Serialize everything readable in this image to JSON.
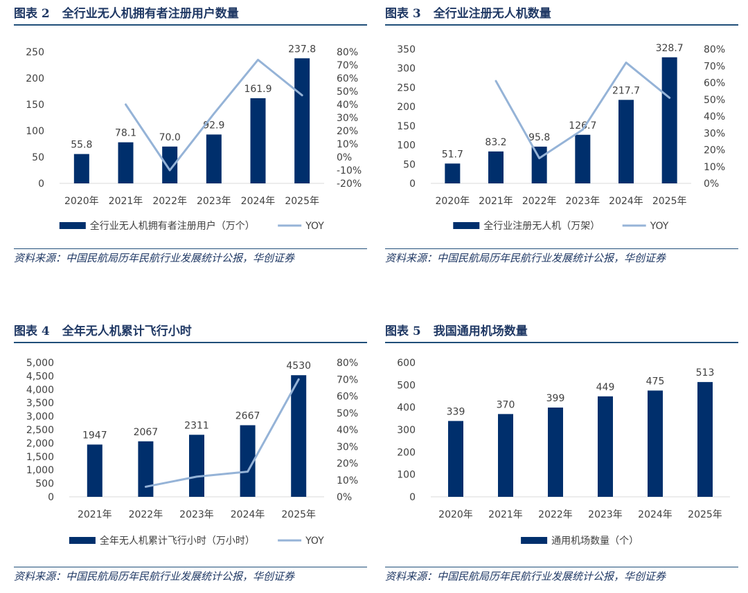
{
  "panels": [
    {
      "fig_num": "图表 2",
      "title": "全行业无人机拥有者注册用户数量",
      "source": "资料来源：中国民航局历年民航行业发展统计公报，华创证券"
    },
    {
      "fig_num": "图表 3",
      "title": "全行业注册无人机数量",
      "source": "资料来源：中国民航局历年民航行业发展统计公报，华创证券"
    },
    {
      "fig_num": "图表 4",
      "title": "全年无人机累计飞行小时",
      "source": "资料来源：中国民航局历年民航行业发展统计公报，华创证券"
    },
    {
      "fig_num": "图表 5",
      "title": "我国通用机场数量",
      "source": "资料来源：中国民航局历年民航行业发展统计公报，华创证券"
    }
  ],
  "colors": {
    "bar": "#002f6c",
    "line": "#95b3d7",
    "title": "#1f3864",
    "rule": "#1f4e79"
  },
  "chart_data": [
    {
      "type": "bar",
      "categories": [
        "2020年",
        "2021年",
        "2022年",
        "2023年",
        "2024年",
        "2025年"
      ],
      "series": [
        {
          "name": "全行业无人机拥有者注册用户（万个）",
          "type": "bar",
          "axis": "left",
          "values": [
            55.8,
            78.1,
            70.0,
            92.9,
            161.9,
            237.8
          ],
          "labels": [
            "55.8",
            "78.1",
            "70.0",
            "92.9",
            "161.9",
            "237.8"
          ]
        },
        {
          "name": "YOY",
          "type": "line",
          "axis": "right",
          "values": [
            null,
            40,
            -10,
            33,
            74,
            47
          ]
        }
      ],
      "ylim": [
        0,
        250
      ],
      "yticks": [
        0,
        50,
        100,
        150,
        200,
        250
      ],
      "y2lim": [
        -20,
        80
      ],
      "y2ticks": [
        -20,
        -10,
        0,
        10,
        20,
        30,
        40,
        50,
        60,
        70,
        80
      ],
      "legend": "bottom"
    },
    {
      "type": "bar",
      "categories": [
        "2020年",
        "2021年",
        "2022年",
        "2023年",
        "2024年",
        "2025年"
      ],
      "series": [
        {
          "name": "全行业注册无人机（万架）",
          "type": "bar",
          "axis": "left",
          "values": [
            51.7,
            83.2,
            95.8,
            126.7,
            217.7,
            328.7
          ],
          "labels": [
            "51.7",
            "83.2",
            "95.8",
            "126.7",
            "217.7",
            "328.7"
          ]
        },
        {
          "name": "YOY",
          "type": "line",
          "axis": "right",
          "values": [
            null,
            61,
            15,
            32,
            72,
            51
          ]
        }
      ],
      "ylim": [
        0,
        350
      ],
      "yticks": [
        0,
        50,
        100,
        150,
        200,
        250,
        300,
        350
      ],
      "y2lim": [
        0,
        80
      ],
      "y2ticks": [
        0,
        10,
        20,
        30,
        40,
        50,
        60,
        70,
        80
      ],
      "legend": "bottom"
    },
    {
      "type": "bar",
      "categories": [
        "2021年",
        "2022年",
        "2023年",
        "2024年",
        "2025年"
      ],
      "series": [
        {
          "name": "全年无人机累计飞行小时（万小时）",
          "type": "bar",
          "axis": "left",
          "values": [
            1947,
            2067,
            2311,
            2667,
            4530
          ],
          "labels": [
            "1947",
            "2067",
            "2311",
            "2667",
            "4530"
          ]
        },
        {
          "name": "YOY",
          "type": "line",
          "axis": "right",
          "values": [
            null,
            6,
            12,
            15,
            70
          ]
        }
      ],
      "ylim": [
        0,
        5000
      ],
      "yticks": [
        0,
        500,
        1000,
        1500,
        2000,
        2500,
        3000,
        3500,
        4000,
        4500,
        5000
      ],
      "ytick_labels": [
        "0",
        "500",
        "1,000",
        "1,500",
        "2,000",
        "2,500",
        "3,000",
        "3,500",
        "4,000",
        "4,500",
        "5,000"
      ],
      "y2lim": [
        0,
        80
      ],
      "y2ticks": [
        0,
        10,
        20,
        30,
        40,
        50,
        60,
        70,
        80
      ],
      "legend": "bottom"
    },
    {
      "type": "bar",
      "categories": [
        "2020年",
        "2021年",
        "2022年",
        "2023年",
        "2024年",
        "2025年"
      ],
      "series": [
        {
          "name": "通用机场数量（个）",
          "type": "bar",
          "axis": "left",
          "values": [
            339,
            370,
            399,
            449,
            475,
            513
          ],
          "labels": [
            "339",
            "370",
            "399",
            "449",
            "475",
            "513"
          ]
        }
      ],
      "ylim": [
        0,
        600
      ],
      "yticks": [
        0,
        100,
        200,
        300,
        400,
        500,
        600
      ],
      "legend": "bottom"
    }
  ]
}
